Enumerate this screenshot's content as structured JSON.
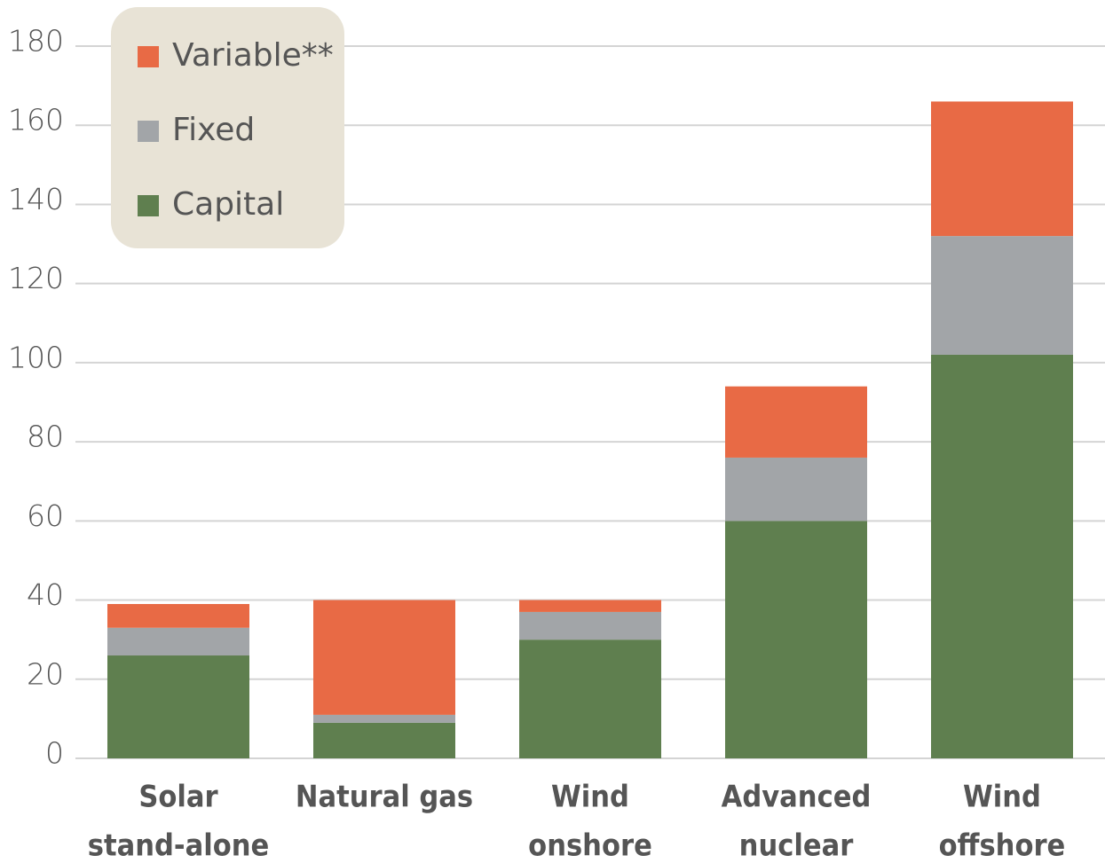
{
  "chart_data": {
    "type": "stacked_bar",
    "categories": [
      [
        "Solar",
        "stand-alone"
      ],
      [
        "Natural gas"
      ],
      [
        "Wind",
        "onshore"
      ],
      [
        "Advanced",
        "nuclear"
      ],
      [
        "Wind",
        "offshore"
      ]
    ],
    "series": [
      {
        "name": "Capital",
        "color": "#5f7f4f",
        "values": [
          26,
          9,
          30,
          60,
          102
        ]
      },
      {
        "name": "Fixed",
        "color": "#a2a5a8",
        "values": [
          7,
          2,
          7,
          16,
          30
        ]
      },
      {
        "name": "Variable**",
        "color": "#e86a45",
        "values": [
          6,
          29,
          3,
          18,
          34
        ]
      }
    ],
    "ylim": [
      0,
      180
    ],
    "yticks": [
      0,
      20,
      40,
      60,
      80,
      100,
      120,
      140,
      160,
      180
    ],
    "grid": true,
    "legend": "upper left"
  }
}
